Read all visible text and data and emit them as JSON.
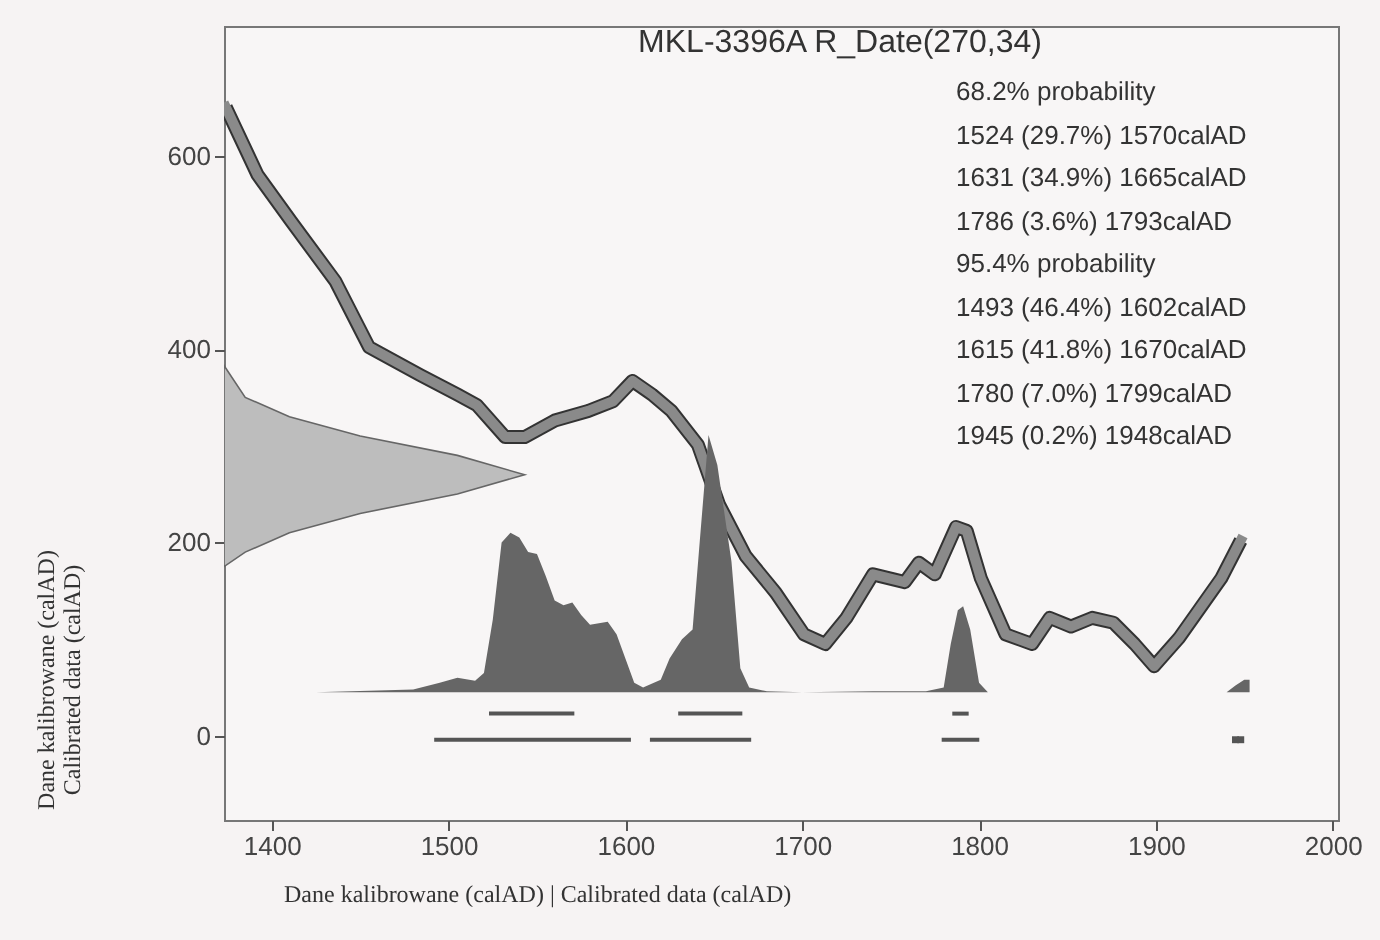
{
  "chart_data": {
    "type": "area",
    "title": "MKL-3396A R_Date(270,34)",
    "xlabel": "Dane kalibrowane (calAD) | Calibrated data (calAD)",
    "ylabel": "Dane kalibrowane (calAD)\nCalibrated data (calAD)",
    "annotations": [
      "68.2% probability",
      "1524 (29.7%) 1570calAD",
      "1631 (34.9%) 1665calAD",
      "1786 (3.6%) 1793calAD",
      "95.4% probability",
      "1493 (46.4%) 1602calAD",
      "1615 (41.8%) 1670calAD",
      "1780 (7.0%) 1799calAD",
      "1945 (0.2%) 1948calAD"
    ],
    "xlim": [
      1373,
      2003
    ],
    "ylim": [
      -87,
      734
    ],
    "xticks": [
      1400,
      1500,
      1600,
      1700,
      1800,
      1900,
      2000
    ],
    "yticks": [
      0,
      200,
      400,
      600
    ],
    "grid": false,
    "series": [
      {
        "type": "line",
        "color": "#8a8a8a",
        "x": [
          1374,
          1392,
          1411,
          1436,
          1455,
          1484,
          1505,
          1516,
          1532,
          1543,
          1560,
          1579,
          1593,
          1604,
          1615,
          1626,
          1641,
          1653,
          1668,
          1685,
          1701,
          1713,
          1725,
          1740,
          1758,
          1766,
          1775,
          1787,
          1793,
          1801,
          1815,
          1830,
          1840,
          1852,
          1864,
          1876,
          1888,
          1899,
          1913,
          1925,
          1937,
          1948
        ],
        "values": [
          650,
          580,
          532,
          470,
          402,
          373,
          353,
          342,
          309,
          309,
          326,
          336,
          346,
          367,
          353,
          336,
          301,
          239,
          186,
          148,
          105,
          95,
          122,
          167,
          159,
          179,
          167,
          216,
          212,
          163,
          105,
          95,
          122,
          113,
          122,
          117,
          95,
          72,
          101,
          132,
          163,
          202
        ]
      },
      {
        "color": "#bdbdbd",
        "x": [
          1373,
          1385,
          1410,
          1450,
          1505,
          1543,
          1505,
          1450,
          1410,
          1385,
          1373
        ],
        "values": [
          383,
          350,
          330,
          310,
          290,
          270,
          250,
          230,
          210,
          190,
          175
        ]
      },
      {
        "color": "#666666",
        "x": [
          1425,
          1480,
          1495,
          1505,
          1515,
          1520,
          1525,
          1530,
          1535,
          1540,
          1545,
          1550,
          1555,
          1560,
          1565,
          1570,
          1575,
          1580,
          1590,
          1595,
          1600,
          1605,
          1610,
          1620,
          1625,
          1632,
          1638,
          1642,
          1647,
          1652,
          1660,
          1665,
          1670,
          1680,
          1700,
          1740,
          1770,
          1780,
          1784,
          1788,
          1791,
          1795,
          1800,
          1805,
          1940,
          1945,
          1950,
          1953
        ],
        "values": [
          45,
          48,
          55,
          60,
          57,
          65,
          120,
          200,
          210,
          205,
          190,
          188,
          165,
          140,
          135,
          138,
          125,
          115,
          118,
          105,
          80,
          55,
          50,
          58,
          80,
          100,
          110,
          200,
          311,
          280,
          180,
          70,
          50,
          46,
          45,
          46,
          46,
          50,
          95,
          130,
          134,
          110,
          55,
          45,
          45,
          52,
          58,
          58
        ]
      },
      {
        "type": "line",
        "color": "#555555",
        "x": [
          1524,
          1570
        ],
        "values": [
          23,
          23
        ]
      },
      {
        "type": "line",
        "color": "#555555",
        "x": [
          1631,
          1665
        ],
        "values": [
          23,
          23
        ]
      },
      {
        "type": "line",
        "color": "#555555",
        "x": [
          1786,
          1793
        ],
        "values": [
          23,
          23
        ]
      },
      {
        "type": "line",
        "color": "#555555",
        "x": [
          1493,
          1602
        ],
        "values": [
          -4,
          -4
        ]
      },
      {
        "type": "line",
        "color": "#555555",
        "x": [
          1615,
          1670
        ],
        "values": [
          -4,
          -4
        ]
      },
      {
        "type": "line",
        "color": "#555555",
        "x": [
          1780,
          1799
        ],
        "values": [
          -4,
          -4
        ]
      },
      {
        "type": "scatter",
        "marker": "square",
        "color": "#555555",
        "x": [
          1945,
          1948
        ],
        "values": [
          -4,
          -4
        ]
      }
    ]
  }
}
